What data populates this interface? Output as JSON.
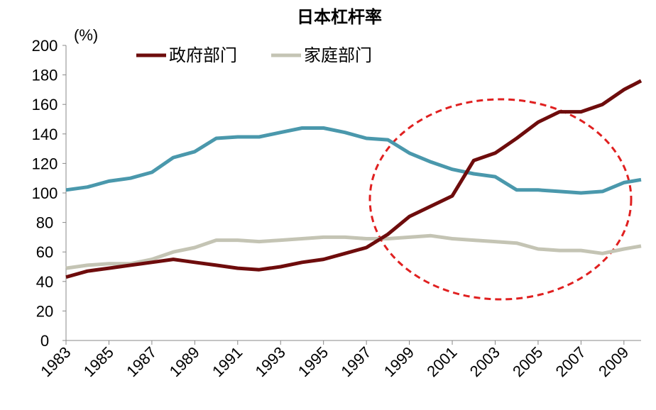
{
  "chart_data": {
    "type": "line",
    "title": "日本杠杆率",
    "y_label": "(%)",
    "x": [
      1983,
      1984,
      1985,
      1986,
      1987,
      1988,
      1989,
      1990,
      1991,
      1992,
      1993,
      1994,
      1995,
      1996,
      1997,
      1998,
      1999,
      2000,
      2001,
      2002,
      2003,
      2004,
      2005,
      2006,
      2007,
      2008,
      2009,
      2009.8
    ],
    "series": [
      {
        "name": "政府部门",
        "color": "#6e0c0c",
        "values": [
          43,
          47,
          49,
          51,
          53,
          55,
          53,
          51,
          49,
          48,
          50,
          53,
          55,
          59,
          63,
          72,
          84,
          91,
          98,
          122,
          127,
          137,
          148,
          155,
          155,
          160,
          170,
          176
        ]
      },
      {
        "name": "家庭部门",
        "color": "#c4c4b4",
        "values": [
          49,
          51,
          52,
          52,
          55,
          60,
          63,
          68,
          68,
          67,
          68,
          69,
          70,
          70,
          69,
          69,
          70,
          71,
          69,
          68,
          67,
          66,
          62,
          61,
          61,
          59,
          62,
          64
        ]
      },
      {
        "color": "#4a98ac",
        "values": [
          102,
          104,
          108,
          110,
          114,
          124,
          128,
          137,
          138,
          138,
          141,
          144,
          144,
          141,
          137,
          136,
          127,
          121,
          116,
          113,
          111,
          102,
          102,
          101,
          100,
          101,
          107,
          109
        ]
      }
    ],
    "xlim": [
      1983,
      2009.8
    ],
    "xticks": [
      1983,
      1985,
      1987,
      1989,
      1991,
      1993,
      1995,
      1997,
      1999,
      2001,
      2003,
      2005,
      2007,
      2009
    ],
    "ylim": [
      0,
      200
    ],
    "yticks": [
      0,
      20,
      40,
      60,
      80,
      100,
      120,
      140,
      160,
      180,
      200
    ],
    "legend": "top"
  }
}
